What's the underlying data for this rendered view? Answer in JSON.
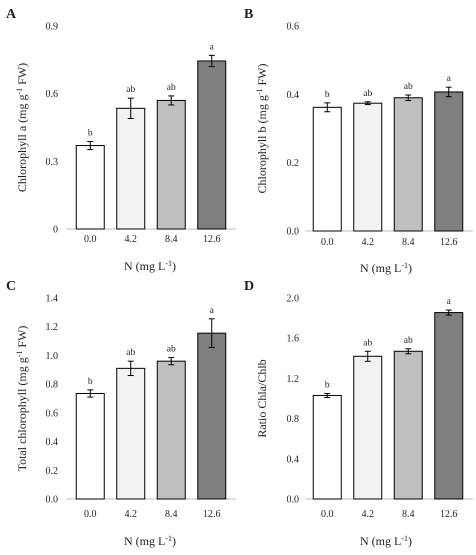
{
  "chart_data": [
    {
      "panel": "A",
      "type": "bar",
      "categories": [
        "0.0",
        "4.2",
        "8.4",
        "12.6"
      ],
      "values": [
        0.37,
        0.535,
        0.57,
        0.745
      ],
      "errors": [
        0.018,
        0.045,
        0.02,
        0.025
      ],
      "significance": [
        "b",
        "ab",
        "ab",
        "a"
      ],
      "colors": [
        "#ffffff",
        "#f2f2f2",
        "#bfbfbf",
        "#7f7f7f"
      ],
      "ylabel_html": "Chlorophyll a (mg g<tspan baseline-shift=\"super\" font-size=\"8\">-1</tspan> FW)",
      "xlabel_html": "N (mg L<tspan baseline-shift=\"super\" font-size=\"8\">-1</tspan>)",
      "ylim": [
        0,
        0.9
      ],
      "yticks": [
        "0",
        "0.3",
        "0.6",
        "0.9"
      ]
    },
    {
      "panel": "B",
      "type": "bar",
      "categories": [
        "0.0",
        "4.2",
        "8.4",
        "12.6"
      ],
      "values": [
        0.362,
        0.374,
        0.39,
        0.407
      ],
      "errors": [
        0.013,
        0.004,
        0.008,
        0.014
      ],
      "significance": [
        "b",
        "ab",
        "ab",
        "a"
      ],
      "colors": [
        "#ffffff",
        "#f2f2f2",
        "#bfbfbf",
        "#7f7f7f"
      ],
      "ylabel_html": "Chlorophyll b (mg g<tspan baseline-shift=\"super\" font-size=\"8\">-1</tspan> FW)",
      "xlabel_html": "N (mg L<tspan baseline-shift=\"super\" font-size=\"8\">-1</tspan>)",
      "ylim": [
        0,
        0.6
      ],
      "yticks": [
        "0.0",
        "0.2",
        "0.4",
        "0.6"
      ]
    },
    {
      "panel": "C",
      "type": "bar",
      "categories": [
        "0.0",
        "4.2",
        "8.4",
        "12.6"
      ],
      "values": [
        0.735,
        0.91,
        0.96,
        1.155
      ],
      "errors": [
        0.025,
        0.05,
        0.025,
        0.1
      ],
      "significance": [
        "b",
        "ab",
        "ab",
        "a"
      ],
      "colors": [
        "#ffffff",
        "#f2f2f2",
        "#bfbfbf",
        "#7f7f7f"
      ],
      "ylabel_html": "Total chlorophyll (mg g<tspan baseline-shift=\"super\" font-size=\"8\">-1</tspan> FW)",
      "xlabel_html": "N (mg L<tspan baseline-shift=\"super\" font-size=\"8\">-1</tspan>)",
      "ylim": [
        0,
        1.4
      ],
      "yticks": [
        "0.0",
        "0.2",
        "0.4",
        "0.6",
        "0.8",
        "1.0",
        "1.2",
        "1.4"
      ]
    },
    {
      "panel": "D",
      "type": "bar",
      "categories": [
        "0.0",
        "4.2",
        "8.4",
        "12.6"
      ],
      "values": [
        1.03,
        1.42,
        1.47,
        1.855
      ],
      "errors": [
        0.02,
        0.05,
        0.025,
        0.025
      ],
      "significance": [
        "b",
        "ab",
        "ab",
        "a"
      ],
      "colors": [
        "#ffffff",
        "#f2f2f2",
        "#bfbfbf",
        "#7f7f7f"
      ],
      "ylabel_html": "Ratio Chla/Chlb",
      "xlabel_html": "N (mg L<tspan baseline-shift=\"super\" font-size=\"8\">-1</tspan>)",
      "ylim": [
        0,
        2.0
      ],
      "yticks": [
        "0.0",
        "0.4",
        "0.8",
        "1.2",
        "1.6",
        "2.0"
      ]
    }
  ]
}
